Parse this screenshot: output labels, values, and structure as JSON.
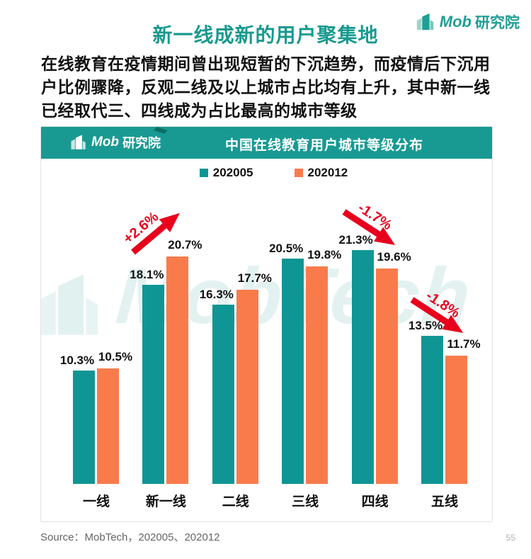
{
  "page": {
    "title": "新一线成新的用户聚集地",
    "paragraph": "在线教育在疫情期间曾出现短暂的下沉趋势，而疫情后下沉用户比例骤降，反观二线及以上城市占比均有上升，其中新一线已经取代三、四线成为占比最高的城市等级",
    "source": "Source：MobTech，202005、202012",
    "page_number": "55"
  },
  "brand": {
    "logo_mob": "Mob",
    "logo_suffix": "研究院",
    "watermark": "MobTech 袤博"
  },
  "colors": {
    "teal": "#0f9694",
    "orange": "#f97b4c",
    "header_teal": "#189a93",
    "title_teal": "#199a8f",
    "annotation_red": "#e8001c"
  },
  "chart_data": {
    "type": "bar",
    "title": "中国在线教育用户城市等级分布",
    "categories": [
      "一线",
      "新一线",
      "二线",
      "三线",
      "四线",
      "五线"
    ],
    "series": [
      {
        "name": "202005",
        "color": "#0f9694",
        "values": [
          10.3,
          18.1,
          16.3,
          20.5,
          21.3,
          13.5
        ]
      },
      {
        "name": "202012",
        "color": "#f97b4c",
        "values": [
          10.5,
          20.7,
          17.7,
          19.8,
          19.6,
          11.7
        ]
      }
    ],
    "value_suffix": "%",
    "ylim": [
      0,
      25
    ],
    "grid": false,
    "legend_position": "top",
    "annotations": [
      {
        "label": "+2.6%",
        "category": "新一线",
        "direction": "up"
      },
      {
        "label": "-1.7%",
        "category": "四线",
        "direction": "down"
      },
      {
        "label": "-1.8%",
        "category": "五线",
        "direction": "down"
      }
    ]
  }
}
